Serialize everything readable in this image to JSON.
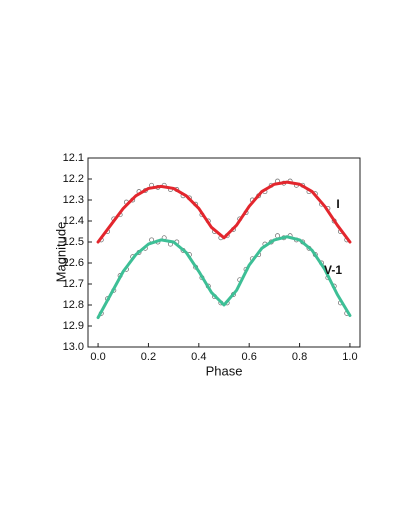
{
  "chart_data": {
    "type": "scatter",
    "x_label": "Phase",
    "y_label": "Magnitude",
    "xlim": [
      -0.04,
      1.04
    ],
    "ylim": [
      12.1,
      13.0
    ],
    "y_inverted": true,
    "xticks": [
      {
        "value": 0,
        "label": "0.0"
      },
      0.2,
      0.4,
      0.6,
      0.8,
      {
        "value": 1,
        "label": "1.0"
      }
    ],
    "yticks": [
      12.1,
      12.2,
      12.3,
      12.4,
      12.5,
      12.6,
      12.7,
      12.8,
      12.9,
      {
        "value": 13,
        "label": "13.0"
      }
    ],
    "series": [
      {
        "name": "I",
        "style": "line",
        "color": "#e3262d",
        "x": [
          0,
          0.05,
          0.1,
          0.15,
          0.2,
          0.25,
          0.3,
          0.35,
          0.4,
          0.45,
          0.5,
          0.55,
          0.6,
          0.65,
          0.7,
          0.75,
          0.8,
          0.85,
          0.9,
          0.95,
          1.0
        ],
        "values": [
          12.5,
          12.42,
          12.34,
          12.28,
          12.245,
          12.235,
          12.245,
          12.28,
          12.34,
          12.43,
          12.48,
          12.42,
          12.33,
          12.26,
          12.225,
          12.215,
          12.225,
          12.26,
          12.33,
          12.42,
          12.5
        ]
      },
      {
        "name": "V-1",
        "style": "line",
        "color": "#3dbf96",
        "x": [
          0,
          0.05,
          0.1,
          0.15,
          0.2,
          0.25,
          0.3,
          0.35,
          0.4,
          0.45,
          0.5,
          0.55,
          0.6,
          0.65,
          0.7,
          0.75,
          0.8,
          0.85,
          0.9,
          0.95,
          1.0
        ],
        "values": [
          12.86,
          12.75,
          12.64,
          12.56,
          12.51,
          12.49,
          12.5,
          12.55,
          12.64,
          12.74,
          12.8,
          12.73,
          12.61,
          12.53,
          12.49,
          12.475,
          12.49,
          12.54,
          12.63,
          12.75,
          12.85
        ]
      },
      {
        "style": "points",
        "color": "#6a6a6a",
        "x": [
          0.0125,
          0.0375,
          0.0625,
          0.0875,
          0.1125,
          0.1375,
          0.1625,
          0.1875,
          0.2125,
          0.2375,
          0.2625,
          0.2875,
          0.3125,
          0.3375,
          0.3625,
          0.3875,
          0.4125,
          0.4375,
          0.4625,
          0.4875,
          0.5125,
          0.5375,
          0.5625,
          0.5875,
          0.6125,
          0.6375,
          0.6625,
          0.6875,
          0.7125,
          0.7375,
          0.7625,
          0.7875,
          0.8125,
          0.8375,
          0.8625,
          0.8875,
          0.9125,
          0.9375,
          0.9625,
          0.9875
        ],
        "values": [
          12.49,
          12.45,
          12.39,
          12.37,
          12.31,
          12.3,
          12.26,
          12.255,
          12.23,
          12.24,
          12.23,
          12.25,
          12.25,
          12.28,
          12.29,
          12.32,
          12.37,
          12.4,
          12.45,
          12.48,
          12.47,
          12.44,
          12.39,
          12.36,
          12.3,
          12.28,
          12.26,
          12.23,
          12.21,
          12.22,
          12.21,
          12.23,
          12.23,
          12.26,
          12.27,
          12.32,
          12.34,
          12.4,
          12.45,
          12.49
        ]
      },
      {
        "style": "points",
        "color": "#6a6a6a",
        "x": [
          0.0125,
          0.0375,
          0.0625,
          0.0875,
          0.1125,
          0.1375,
          0.1625,
          0.1875,
          0.2125,
          0.2375,
          0.2625,
          0.2875,
          0.3125,
          0.3375,
          0.3625,
          0.3875,
          0.4125,
          0.4375,
          0.4625,
          0.4875,
          0.5125,
          0.5375,
          0.5625,
          0.5875,
          0.6125,
          0.6375,
          0.6625,
          0.6875,
          0.7125,
          0.7375,
          0.7625,
          0.7875,
          0.8125,
          0.8375,
          0.8625,
          0.8875,
          0.9125,
          0.9375,
          0.9625,
          0.9875
        ],
        "values": [
          12.84,
          12.77,
          12.73,
          12.66,
          12.63,
          12.57,
          12.55,
          12.53,
          12.49,
          12.5,
          12.48,
          12.51,
          12.5,
          12.54,
          12.56,
          12.62,
          12.67,
          12.71,
          12.76,
          12.79,
          12.79,
          12.75,
          12.68,
          12.63,
          12.58,
          12.56,
          12.51,
          12.5,
          12.47,
          12.48,
          12.47,
          12.49,
          12.5,
          12.53,
          12.56,
          12.6,
          12.67,
          12.71,
          12.79,
          12.84
        ]
      }
    ]
  }
}
